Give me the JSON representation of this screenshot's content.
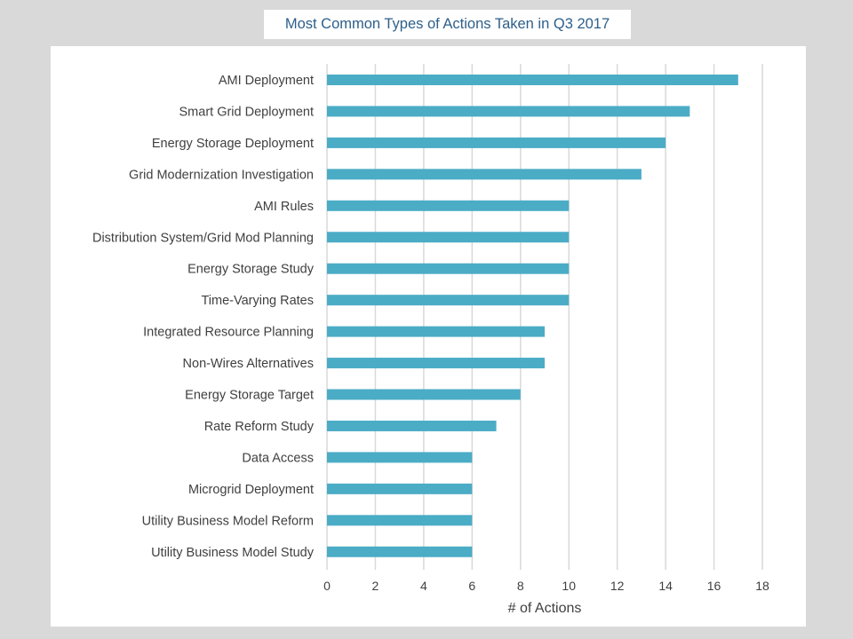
{
  "chart_data": {
    "type": "bar",
    "orientation": "horizontal",
    "title": "Most Common Types of Actions Taken in Q3 2017",
    "xlabel": "# of Actions",
    "ylabel": "",
    "xlim": [
      0,
      18
    ],
    "xticks": [
      "0",
      "2",
      "4",
      "6",
      "8",
      "10",
      "12",
      "14",
      "16",
      "18"
    ],
    "grid": "vertical",
    "bar_color": "#4bacc6",
    "categories": [
      "AMI Deployment",
      "Smart Grid Deployment",
      "Energy Storage Deployment",
      "Grid Modernization Investigation",
      "AMI Rules",
      "Distribution System/Grid Mod Planning",
      "Energy Storage Study",
      "Time-Varying Rates",
      "Integrated Resource Planning",
      "Non-Wires Alternatives",
      "Energy Storage Target",
      "Rate Reform Study",
      "Data Access",
      "Microgrid Deployment",
      "Utility Business Model Reform",
      "Utility Business Model Study"
    ],
    "values": [
      17,
      15,
      14,
      13,
      10,
      10,
      10,
      10,
      9,
      9,
      8,
      7,
      6,
      6,
      6,
      6
    ]
  }
}
